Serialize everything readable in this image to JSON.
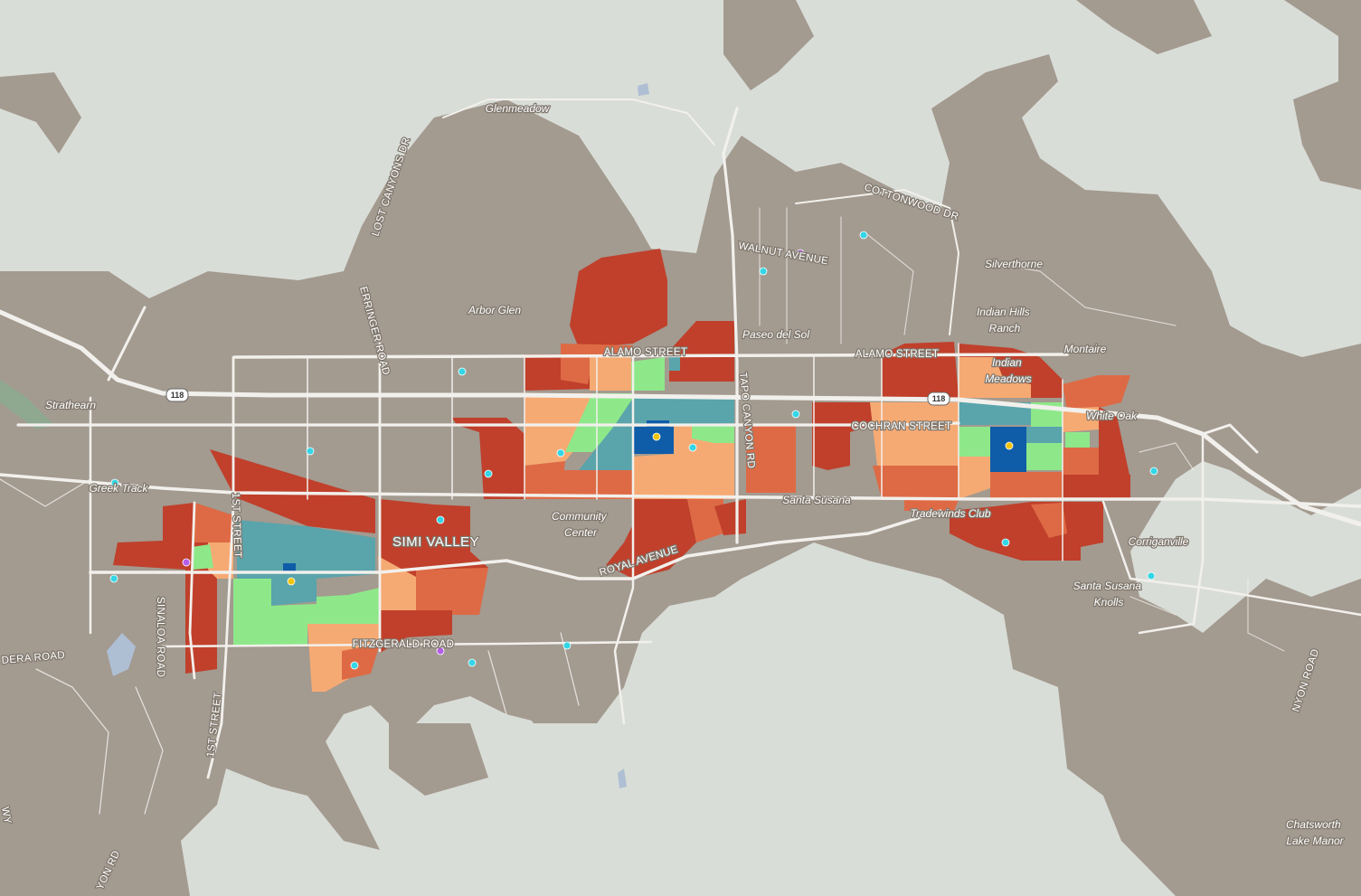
{
  "map": {
    "title": "",
    "colors": {
      "background": "#d9ddd7",
      "terrain": "#a39a90",
      "road": "#f2f0ec",
      "water": "#aebfd4",
      "dark_red": "#c0402b",
      "orange_red": "#de6a45",
      "light_orange": "#f6aa73",
      "light_green": "#8ee88a",
      "teal": "#5aa4ab",
      "dark_blue": "#0f5ca8",
      "poi_cyan": "#33d6e6",
      "poi_yellow": "#f2c40e",
      "poi_purple": "#b55ce8"
    },
    "highway_shields": [
      "118",
      "118"
    ],
    "place_labels": [
      "Glenmeadow",
      "Arbor Glen",
      "Strathearn",
      "Greek Track",
      "Paseo del Sol",
      "Silverthorne",
      "Indian Hills Ranch",
      "Indian Meadows",
      "Montaire",
      "White Oak",
      "Community Center",
      "Tradewinds Club",
      "Corriganville",
      "Santa Susana Knolls",
      "Chatsworth Lake Manor",
      "Santa Susana"
    ],
    "street_labels": [
      "LOST CANYONS DR",
      "ERRINGER ROAD",
      "COTTONWOOD DR",
      "WALNUT AVENUE",
      "ALAMO STREET",
      "ALAMO STREET",
      "COCHRAN STREET",
      "TAPO CANYON RD",
      "1ST STREET",
      "1ST STREET",
      "SINALOA ROAD",
      "FITZGERALD ROAD",
      "ROYAL AVENUE",
      "DERA ROAD",
      "YON RD",
      "NYON ROAD",
      "WY"
    ],
    "city_label": "SIMI VALLEY"
  }
}
